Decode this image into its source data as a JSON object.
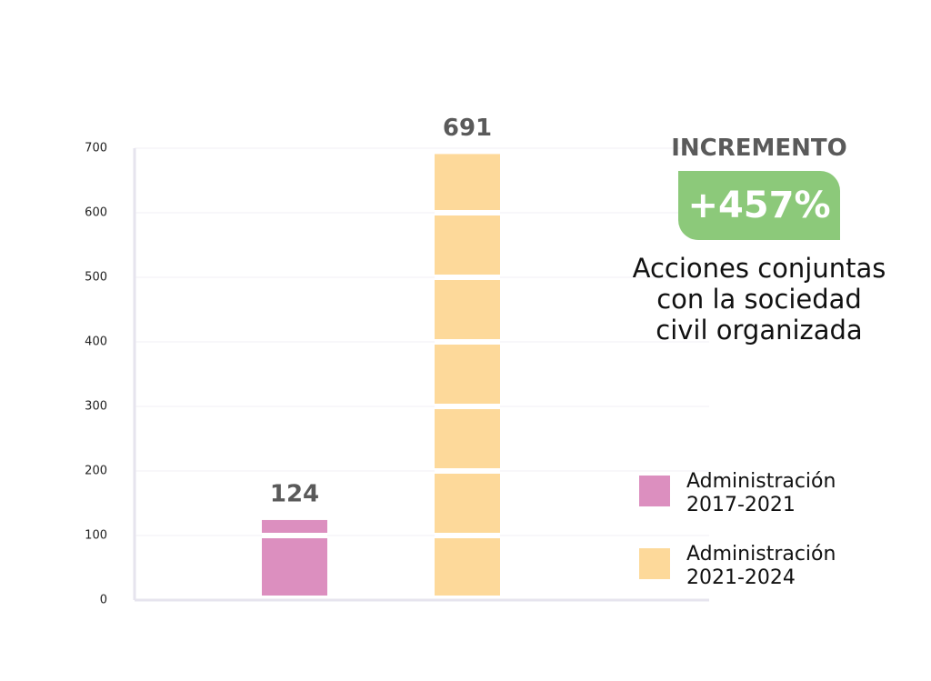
{
  "chart_data": {
    "type": "bar",
    "categories": [
      null,
      null
    ],
    "series": [
      {
        "name": "Administración 2017-2021",
        "color": "#dc8fbf",
        "values": [
          124,
          null
        ]
      },
      {
        "name": "Administración 2021-2024",
        "color": "#fdd99a",
        "values": [
          null,
          691
        ]
      }
    ],
    "ylim": [
      0,
      700
    ],
    "yticks": [
      0,
      100,
      200,
      300,
      400,
      500,
      600,
      700
    ],
    "grid": true,
    "annotations": {
      "heading": "INCREMENTO",
      "badge": "+457%",
      "description": "Acciones conjuntas con la sociedad civil organizada"
    }
  }
}
